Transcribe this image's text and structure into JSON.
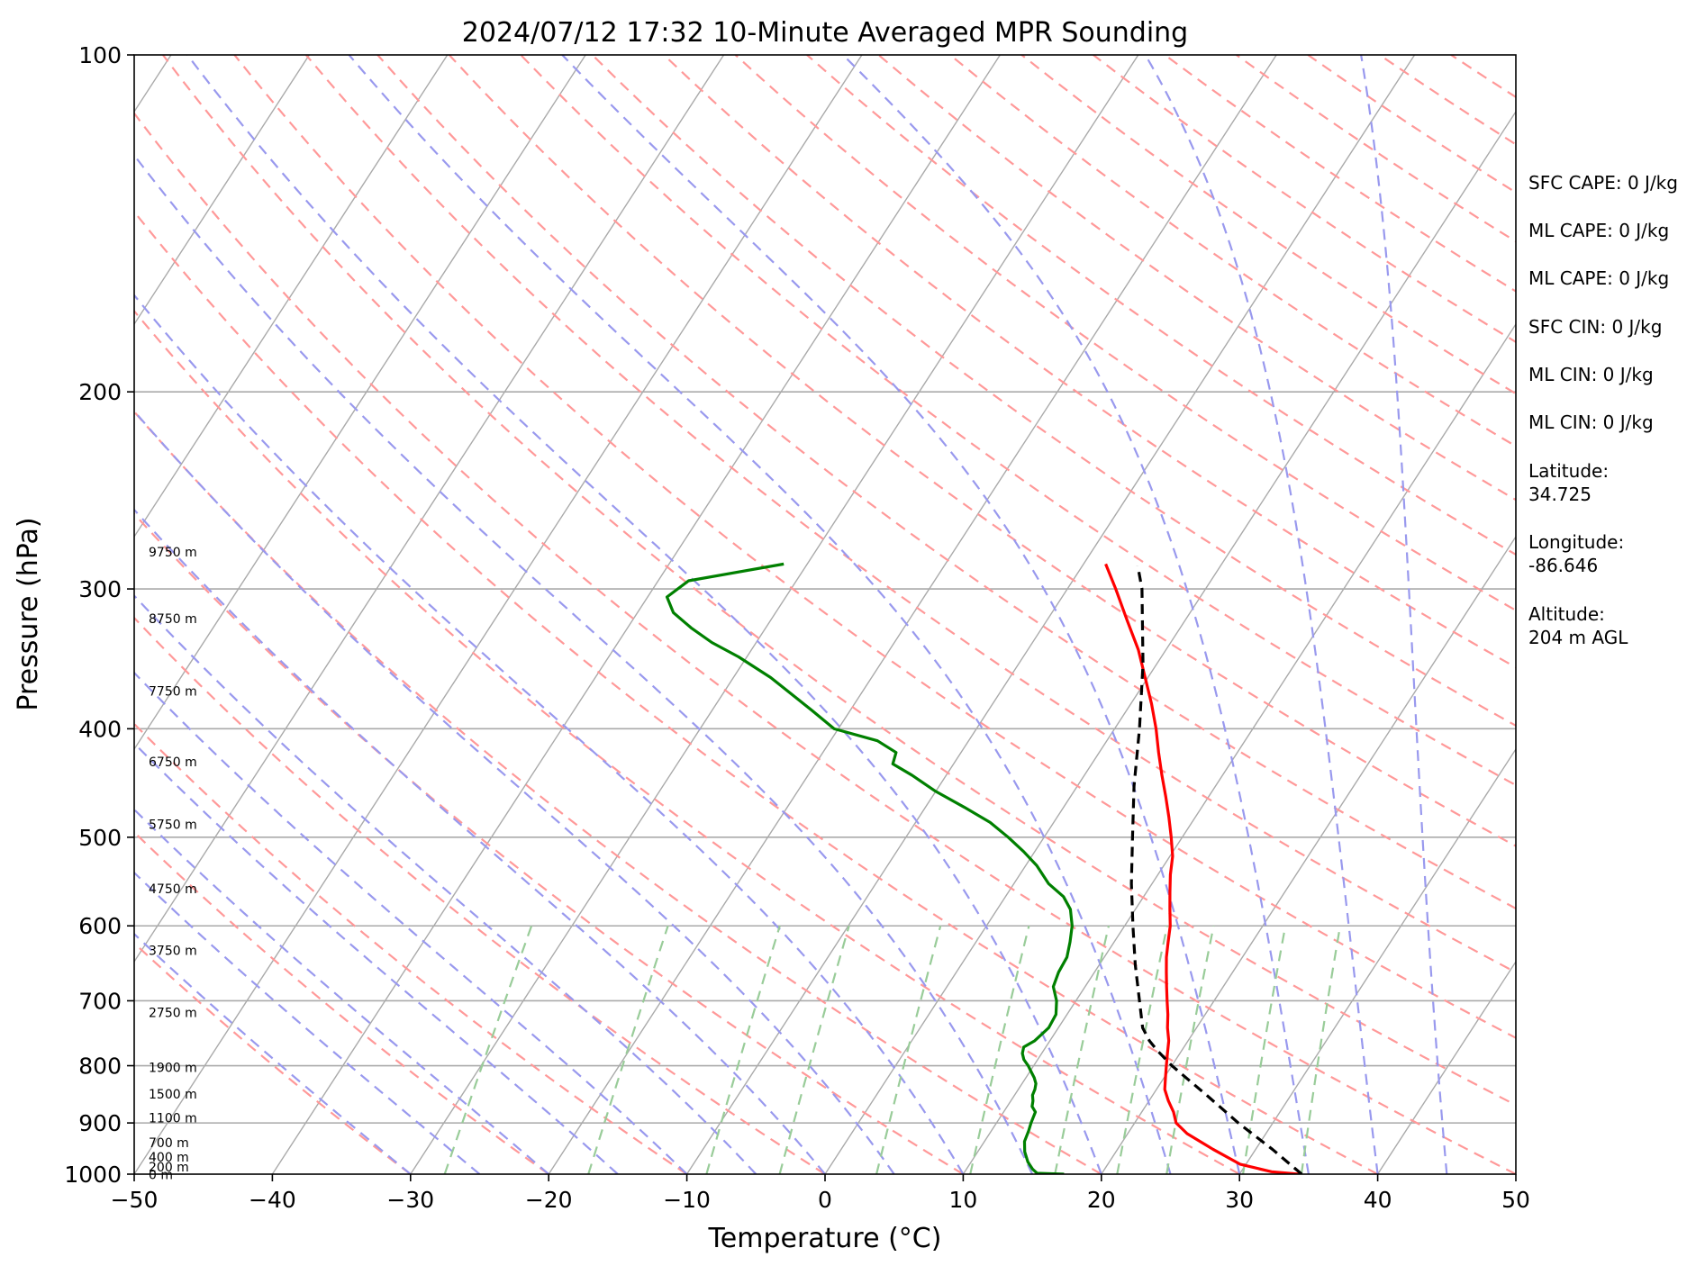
{
  "chart_data": {
    "type": "line",
    "title": "2024/07/12 17:32 10-Minute Averaged MPR Sounding",
    "xlabel": "Temperature (°C)",
    "ylabel": "Pressure (hPa)",
    "xlim": [
      -50,
      50
    ],
    "ylim": [
      1000,
      100
    ],
    "y_scale": "log",
    "x_ticks": [
      "−50",
      "−40",
      "−30",
      "−20",
      "−10",
      "0",
      "10",
      "20",
      "30",
      "40",
      "50"
    ],
    "y_ticks": [
      "100",
      "200",
      "300",
      "400",
      "500",
      "600",
      "700",
      "800",
      "900",
      "1000"
    ],
    "grid": true,
    "colors": {
      "temperature": "#ff0000",
      "dewpoint": "#008000",
      "parcel": "#000000",
      "dry_adiabats": "#ff9999",
      "moist_adiabats": "#9999ee",
      "mixing_ratio": "#99cc99",
      "isotherms": "#aaaaaa"
    },
    "series": [
      {
        "key": "temperature",
        "points": [
          [
            1000,
            34.3
          ],
          [
            995,
            32.2
          ],
          [
            980,
            29.6
          ],
          [
            950,
            26.9
          ],
          [
            920,
            24.3
          ],
          [
            900,
            23.0
          ],
          [
            880,
            22.3
          ],
          [
            860,
            21.4
          ],
          [
            840,
            20.6
          ],
          [
            820,
            20.1
          ],
          [
            800,
            19.6
          ],
          [
            780,
            19.1
          ],
          [
            760,
            18.6
          ],
          [
            740,
            17.9
          ],
          [
            720,
            17.3
          ],
          [
            700,
            16.6
          ],
          [
            680,
            15.9
          ],
          [
            660,
            15.2
          ],
          [
            640,
            14.5
          ],
          [
            620,
            13.9
          ],
          [
            600,
            13.3
          ],
          [
            580,
            12.5
          ],
          [
            560,
            11.7
          ],
          [
            540,
            10.9
          ],
          [
            520,
            10.2
          ],
          [
            500,
            9.2
          ],
          [
            480,
            8.1
          ],
          [
            460,
            6.9
          ],
          [
            440,
            5.6
          ],
          [
            420,
            4.3
          ],
          [
            400,
            3.0
          ],
          [
            380,
            1.5
          ],
          [
            360,
            -0.2
          ],
          [
            340,
            -2.0
          ],
          [
            320,
            -4.2
          ],
          [
            300,
            -6.5
          ],
          [
            285,
            -8.4
          ]
        ]
      },
      {
        "key": "dewpoint",
        "points": [
          [
            1000,
            17.3
          ],
          [
            998,
            15.3
          ],
          [
            990,
            14.8
          ],
          [
            975,
            14.1
          ],
          [
            955,
            13.4
          ],
          [
            935,
            12.9
          ],
          [
            915,
            12.7
          ],
          [
            900,
            12.5
          ],
          [
            890,
            12.4
          ],
          [
            880,
            12.3
          ],
          [
            870,
            11.8
          ],
          [
            860,
            11.6
          ],
          [
            850,
            11.3
          ],
          [
            840,
            11.2
          ],
          [
            830,
            11.0
          ],
          [
            820,
            10.6
          ],
          [
            810,
            10.1
          ],
          [
            800,
            9.6
          ],
          [
            790,
            9.0
          ],
          [
            780,
            8.6
          ],
          [
            770,
            8.4
          ],
          [
            760,
            8.9
          ],
          [
            740,
            9.3
          ],
          [
            720,
            9.2
          ],
          [
            700,
            8.6
          ],
          [
            680,
            7.7
          ],
          [
            660,
            7.4
          ],
          [
            640,
            7.3
          ],
          [
            620,
            6.8
          ],
          [
            600,
            6.2
          ],
          [
            580,
            5.3
          ],
          [
            565,
            4.2
          ],
          [
            550,
            2.5
          ],
          [
            530,
            0.8
          ],
          [
            515,
            -0.8
          ],
          [
            500,
            -2.6
          ],
          [
            485,
            -4.6
          ],
          [
            470,
            -7.2
          ],
          [
            455,
            -10.0
          ],
          [
            440,
            -12.5
          ],
          [
            430,
            -14.4
          ],
          [
            420,
            -14.7
          ],
          [
            410,
            -16.6
          ],
          [
            400,
            -20.3
          ],
          [
            385,
            -22.8
          ],
          [
            360,
            -27.3
          ],
          [
            345,
            -30.6
          ],
          [
            335,
            -33.2
          ],
          [
            325,
            -35.4
          ],
          [
            315,
            -37.4
          ],
          [
            305,
            -38.6
          ],
          [
            295,
            -37.8
          ],
          [
            285,
            -31.7
          ]
        ]
      },
      {
        "key": "parcel",
        "points": [
          [
            1000,
            34.5
          ],
          [
            950,
            31.2
          ],
          [
            900,
            27.5
          ],
          [
            850,
            23.9
          ],
          [
            800,
            20.0
          ],
          [
            775,
            18.2
          ],
          [
            760,
            17.2
          ],
          [
            740,
            16.1
          ],
          [
            700,
            14.6
          ],
          [
            650,
            12.6
          ],
          [
            600,
            10.6
          ],
          [
            550,
            8.5
          ],
          [
            500,
            6.4
          ],
          [
            450,
            4.1
          ],
          [
            400,
            1.8
          ],
          [
            350,
            -1.0
          ],
          [
            300,
            -4.6
          ],
          [
            286,
            -6.0
          ]
        ]
      }
    ],
    "height_labels": [
      {
        "text": "9750 m",
        "p": 278
      },
      {
        "text": "8750 m",
        "p": 319
      },
      {
        "text": "7750 m",
        "p": 370
      },
      {
        "text": "6750 m",
        "p": 428
      },
      {
        "text": "5750 m",
        "p": 487
      },
      {
        "text": "4750 m",
        "p": 556
      },
      {
        "text": "3750 m",
        "p": 631
      },
      {
        "text": "2750 m",
        "p": 717
      },
      {
        "text": "1900 m",
        "p": 803
      },
      {
        "text": "1500 m",
        "p": 848
      },
      {
        "text": "1100 m",
        "p": 891
      },
      {
        "text": "700 m",
        "p": 937
      },
      {
        "text": "400 m",
        "p": 965
      },
      {
        "text": "200 m",
        "p": 985
      },
      {
        "text": "0 m",
        "p": 1001
      }
    ]
  },
  "info": {
    "sfc_cape": "SFC CAPE: 0 J/kg",
    "ml_cape_1": "ML CAPE: 0 J/kg",
    "ml_cape_2": "ML CAPE: 0 J/kg",
    "sfc_cin": "SFC CIN: 0 J/kg",
    "ml_cin_1": "ML CIN: 0 J/kg",
    "ml_cin_2": "ML CIN: 0 J/kg",
    "latitude_label": "Latitude:",
    "latitude_value": "34.725",
    "longitude_label": "Longitude:",
    "longitude_value": "-86.646",
    "altitude_label": "Altitude:",
    "altitude_value": "204 m AGL"
  }
}
